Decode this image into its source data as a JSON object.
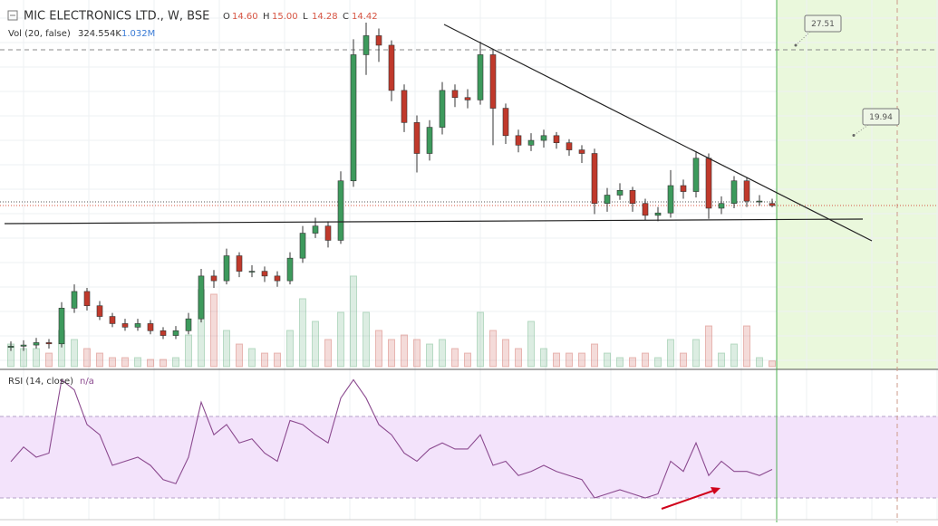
{
  "header": {
    "title": "MIC ELECTRONICS LTD., W, BSE",
    "ohlc": [
      {
        "label": "O",
        "value": "14.60"
      },
      {
        "label": "H",
        "value": "15.00"
      },
      {
        "label": "L",
        "value": "14.28"
      },
      {
        "label": "C",
        "value": "14.42"
      }
    ],
    "volume_legend": {
      "label": "Vol (20, false)",
      "volume": "324.554K",
      "ma": "1.032M"
    },
    "rsi_legend": {
      "label": "RSI (14, close)",
      "value": "n/a"
    }
  },
  "chart_data": [
    {
      "type": "candlestick",
      "up_color": "#3d9a5c",
      "down_color": "#c0392b",
      "ylim": [
        0.5,
        31.7
      ],
      "vlim": [
        0,
        10000000
      ],
      "annotations": [
        27.51,
        19.94
      ],
      "open": [
        2.5,
        2.6,
        2.7,
        2.9,
        2.8,
        5.8,
        7.2,
        6.0,
        5.1,
        4.5,
        4.2,
        4.5,
        3.9,
        3.5,
        3.9,
        4.9,
        8.5,
        8.1,
        10.2,
        8.9,
        8.9,
        8.5,
        8.1,
        10.0,
        12.1,
        12.7,
        11.5,
        16.5,
        27.1,
        28.7,
        27.9,
        24.1,
        21.4,
        18.8,
        21.0,
        24.1,
        23.5,
        23.3,
        27.1,
        22.6,
        20.3,
        19.5,
        19.9,
        20.3,
        19.7,
        19.1,
        18.8,
        14.6,
        15.3,
        15.7,
        14.6,
        13.6,
        13.8,
        16.1,
        15.6,
        18.4,
        14.2,
        14.6,
        16.5,
        14.8,
        14.6
      ],
      "high": [
        3.0,
        3.1,
        3.3,
        3.2,
        6.3,
        7.8,
        7.5,
        6.4,
        5.4,
        4.9,
        4.9,
        4.8,
        4.2,
        4.3,
        5.4,
        9.1,
        9.0,
        10.8,
        10.5,
        9.4,
        9.3,
        8.9,
        10.5,
        12.7,
        13.4,
        13.1,
        17.3,
        28.4,
        29.8,
        29.3,
        28.3,
        24.6,
        22.0,
        21.6,
        24.8,
        24.6,
        24.2,
        28.2,
        27.5,
        23.0,
        20.8,
        20.5,
        20.8,
        20.6,
        20.0,
        19.5,
        19.2,
        15.9,
        16.3,
        16.0,
        15.0,
        14.3,
        17.4,
        16.6,
        19.0,
        18.8,
        15.2,
        16.9,
        16.8,
        15.3,
        15.0
      ],
      "low": [
        2.2,
        2.2,
        2.4,
        2.4,
        2.5,
        5.4,
        5.6,
        4.8,
        4.2,
        3.9,
        3.9,
        3.6,
        3.2,
        3.2,
        3.6,
        4.6,
        7.5,
        7.8,
        8.4,
        8.4,
        8.0,
        7.6,
        7.8,
        9.6,
        11.7,
        10.9,
        11.2,
        16.0,
        25.4,
        26.5,
        23.2,
        20.6,
        17.2,
        18.2,
        20.4,
        22.7,
        22.6,
        22.9,
        19.5,
        19.6,
        18.9,
        19.0,
        19.3,
        19.2,
        18.6,
        18.0,
        13.7,
        13.9,
        14.9,
        13.9,
        13.2,
        13.1,
        13.4,
        15.0,
        15.1,
        13.3,
        13.7,
        14.2,
        14.3,
        14.4,
        14.28
      ],
      "close": [
        2.6,
        2.7,
        2.9,
        2.8,
        5.8,
        7.2,
        6.0,
        5.1,
        4.5,
        4.2,
        4.5,
        3.9,
        3.5,
        3.9,
        4.9,
        8.5,
        8.1,
        10.2,
        8.9,
        8.9,
        8.5,
        8.1,
        10.0,
        12.1,
        12.7,
        11.5,
        16.5,
        27.1,
        28.7,
        27.9,
        24.1,
        21.4,
        18.8,
        21.0,
        24.1,
        23.5,
        23.3,
        27.1,
        22.6,
        20.3,
        19.5,
        19.9,
        20.3,
        19.7,
        19.1,
        18.8,
        14.6,
        15.3,
        15.7,
        14.6,
        13.6,
        13.8,
        16.1,
        15.6,
        18.4,
        14.2,
        14.6,
        16.5,
        14.8,
        14.8,
        14.42
      ],
      "volume": [
        1290000,
        1032000,
        1032000,
        774000,
        2064000,
        1548000,
        1032000,
        774000,
        516000,
        516000,
        516000,
        412800,
        412800,
        516000,
        1806000,
        4386000,
        4128000,
        2064000,
        1290000,
        1032000,
        774000,
        774000,
        2064000,
        3870000,
        2580000,
        1548000,
        3096000,
        5160000,
        3096000,
        2064000,
        1548000,
        1806000,
        1548000,
        1290000,
        1548000,
        1032000,
        774000,
        3096000,
        2064000,
        1548000,
        1032000,
        2580000,
        1032000,
        774000,
        774000,
        774000,
        1290000,
        774000,
        516000,
        516000,
        774000,
        516000,
        1548000,
        774000,
        1548000,
        2322000,
        774000,
        1290000,
        2322000,
        516000,
        324554
      ]
    },
    {
      "type": "line",
      "color": "#8b4a8f",
      "band_color": "#f3e3fb",
      "ylim": [
        18,
        92.2
      ],
      "bands": [
        30,
        70
      ],
      "values": [
        47.8,
        55,
        50,
        52,
        88,
        83,
        66,
        61,
        46,
        48,
        50,
        46,
        39,
        37,
        50,
        77,
        61,
        66,
        57,
        59,
        52,
        48,
        68,
        66,
        61,
        57,
        79,
        88,
        79,
        66,
        61,
        52,
        48,
        54,
        57,
        54,
        54,
        61,
        46,
        48,
        41,
        43,
        46,
        43,
        41,
        39,
        30,
        32,
        34,
        32,
        30,
        32,
        48,
        43,
        57,
        41,
        48,
        43,
        43,
        41,
        44
      ]
    }
  ]
}
